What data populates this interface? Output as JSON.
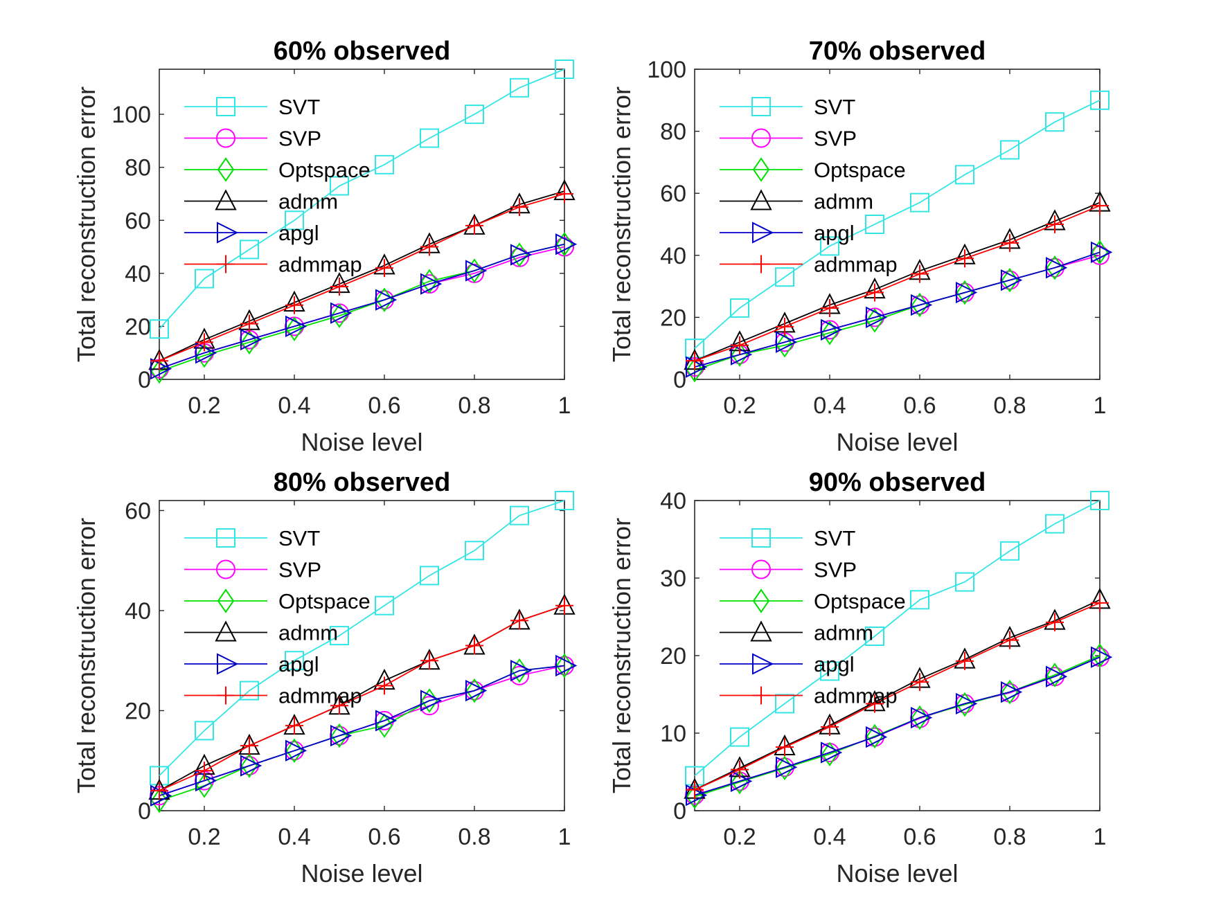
{
  "figure": {
    "layout": "2x2 grid of line charts",
    "background": "#ffffff"
  },
  "series_styles": [
    {
      "name": "SVT",
      "color": "#33e6e6",
      "marker": "square"
    },
    {
      "name": "SVP",
      "color": "#ff00ff",
      "marker": "circle"
    },
    {
      "name": "Optspace",
      "color": "#00e000",
      "marker": "diamond"
    },
    {
      "name": "admm",
      "color": "#000000",
      "marker": "triangle-up"
    },
    {
      "name": "apgl",
      "color": "#0000c8",
      "marker": "triangle-right"
    },
    {
      "name": "admmap",
      "color": "#ff0000",
      "marker": "plus"
    }
  ],
  "chart_data": [
    {
      "type": "line",
      "title": "60% observed",
      "xlabel": "Noise level",
      "ylabel": "Total reconstruction error",
      "xlim": [
        0.1,
        1
      ],
      "ylim": [
        0,
        117
      ],
      "xticks": [
        0.2,
        0.4,
        0.6,
        0.8,
        1
      ],
      "xtick_labels": [
        "0.2",
        "0.4",
        "0.6",
        "0.8",
        "1"
      ],
      "yticks": [
        0,
        20,
        40,
        60,
        80,
        100
      ],
      "ytick_labels": [
        "0",
        "20",
        "40",
        "60",
        "80",
        "100"
      ],
      "legend": "top-left",
      "grid": false,
      "x": [
        0.1,
        0.2,
        0.3,
        0.4,
        0.5,
        0.6,
        0.7,
        0.8,
        0.9,
        1.0
      ],
      "series": [
        {
          "name": "SVT",
          "values": [
            19,
            38,
            49,
            60,
            73,
            81,
            91,
            100,
            110,
            117
          ]
        },
        {
          "name": "SVP",
          "values": [
            4,
            10,
            15,
            20,
            25,
            30,
            36,
            40,
            46,
            50
          ]
        },
        {
          "name": "Optspace",
          "values": [
            3,
            9,
            14,
            19,
            24,
            30,
            37,
            41,
            47,
            51
          ]
        },
        {
          "name": "admm",
          "values": [
            7,
            15,
            22,
            29,
            36,
            43,
            51,
            58,
            66,
            71
          ]
        },
        {
          "name": "apgl",
          "values": [
            4,
            10,
            15,
            20,
            25,
            30,
            36,
            41,
            47,
            51
          ]
        },
        {
          "name": "admmap",
          "values": [
            7,
            14,
            21,
            28,
            35,
            42,
            50,
            58,
            65,
            70
          ]
        }
      ]
    },
    {
      "type": "line",
      "title": "70% observed",
      "xlabel": "Noise level",
      "ylabel": "Total reconstruction error",
      "xlim": [
        0.1,
        1
      ],
      "ylim": [
        0,
        100
      ],
      "xticks": [
        0.2,
        0.4,
        0.6,
        0.8,
        1
      ],
      "xtick_labels": [
        "0.2",
        "0.4",
        "0.6",
        "0.8",
        "1"
      ],
      "yticks": [
        0,
        20,
        40,
        60,
        80,
        100
      ],
      "ytick_labels": [
        "0",
        "20",
        "40",
        "60",
        "80",
        "100"
      ],
      "legend": "top-left",
      "grid": false,
      "x": [
        0.1,
        0.2,
        0.3,
        0.4,
        0.5,
        0.6,
        0.7,
        0.8,
        0.9,
        1.0
      ],
      "series": [
        {
          "name": "SVT",
          "values": [
            10,
            23,
            33,
            43,
            50,
            57,
            66,
            74,
            83,
            90
          ]
        },
        {
          "name": "SVP",
          "values": [
            4,
            8,
            12,
            16,
            20,
            24,
            28,
            32,
            36,
            40
          ]
        },
        {
          "name": "Optspace",
          "values": [
            3,
            8,
            11,
            15,
            19,
            24,
            28,
            32,
            36,
            41
          ]
        },
        {
          "name": "admm",
          "values": [
            6,
            12,
            18,
            24,
            29,
            35,
            40,
            45,
            51,
            57
          ]
        },
        {
          "name": "apgl",
          "values": [
            4,
            8,
            12,
            16,
            20,
            24,
            28,
            32,
            36,
            41
          ]
        },
        {
          "name": "admmap",
          "values": [
            6,
            11,
            17,
            23,
            28,
            34,
            39,
            44,
            50,
            56
          ]
        }
      ]
    },
    {
      "type": "line",
      "title": "80% observed",
      "xlabel": "Noise level",
      "ylabel": "Total reconstruction error",
      "xlim": [
        0.1,
        1
      ],
      "ylim": [
        0,
        62
      ],
      "xticks": [
        0.2,
        0.4,
        0.6,
        0.8,
        1
      ],
      "xtick_labels": [
        "0.2",
        "0.4",
        "0.6",
        "0.8",
        "1"
      ],
      "yticks": [
        0,
        20,
        40,
        60
      ],
      "ytick_labels": [
        "0",
        "20",
        "40",
        "60"
      ],
      "legend": "top-left",
      "grid": false,
      "x": [
        0.1,
        0.2,
        0.3,
        0.4,
        0.5,
        0.6,
        0.7,
        0.8,
        0.9,
        1.0
      ],
      "series": [
        {
          "name": "SVT",
          "values": [
            7,
            16,
            24,
            30,
            35,
            41,
            47,
            52,
            59,
            62
          ]
        },
        {
          "name": "SVP",
          "values": [
            3,
            6,
            9,
            12,
            15,
            18,
            21,
            24,
            27,
            29
          ]
        },
        {
          "name": "Optspace",
          "values": [
            2,
            5,
            9,
            12,
            15,
            17,
            22,
            24,
            28,
            29
          ]
        },
        {
          "name": "admm",
          "values": [
            4,
            9,
            13,
            17,
            21,
            26,
            30,
            33,
            38,
            41
          ]
        },
        {
          "name": "apgl",
          "values": [
            3,
            6,
            9,
            12,
            15,
            18,
            22,
            24,
            28,
            29
          ]
        },
        {
          "name": "admmap",
          "values": [
            4,
            8,
            13,
            17,
            21,
            25,
            30,
            33,
            38,
            41
          ]
        }
      ]
    },
    {
      "type": "line",
      "title": "90% observed",
      "xlabel": "Noise level",
      "ylabel": "Total reconstruction error",
      "xlim": [
        0.1,
        1
      ],
      "ylim": [
        0,
        40
      ],
      "xticks": [
        0.2,
        0.4,
        0.6,
        0.8,
        1
      ],
      "xtick_labels": [
        "0.2",
        "0.4",
        "0.6",
        "0.8",
        "1"
      ],
      "yticks": [
        0,
        10,
        20,
        30,
        40
      ],
      "ytick_labels": [
        "0",
        "10",
        "20",
        "30",
        "40"
      ],
      "legend": "top-left",
      "grid": false,
      "x": [
        0.1,
        0.2,
        0.3,
        0.4,
        0.5,
        0.6,
        0.7,
        0.8,
        0.9,
        1.0
      ],
      "series": [
        {
          "name": "SVT",
          "values": [
            4.5,
            9.5,
            13.8,
            18,
            22.5,
            27.2,
            29.5,
            33.5,
            37,
            40
          ]
        },
        {
          "name": "SVP",
          "values": [
            2,
            3.8,
            5.6,
            7.5,
            9.5,
            11.9,
            13.8,
            15.2,
            17.3,
            19.8
          ]
        },
        {
          "name": "Optspace",
          "values": [
            1.8,
            3.7,
            5.5,
            7.3,
            9.6,
            12,
            13.7,
            15.3,
            17.5,
            20
          ]
        },
        {
          "name": "admm",
          "values": [
            2.7,
            5.5,
            8.3,
            11,
            14,
            17,
            19.5,
            22.3,
            24.5,
            27.2
          ]
        },
        {
          "name": "apgl",
          "values": [
            2,
            3.8,
            5.6,
            7.5,
            9.5,
            12,
            13.8,
            15.3,
            17.3,
            19.8
          ]
        },
        {
          "name": "admmap",
          "values": [
            2.7,
            5.3,
            8.2,
            10.8,
            13.8,
            16.6,
            19.3,
            22,
            24.3,
            26.8
          ]
        }
      ]
    }
  ]
}
